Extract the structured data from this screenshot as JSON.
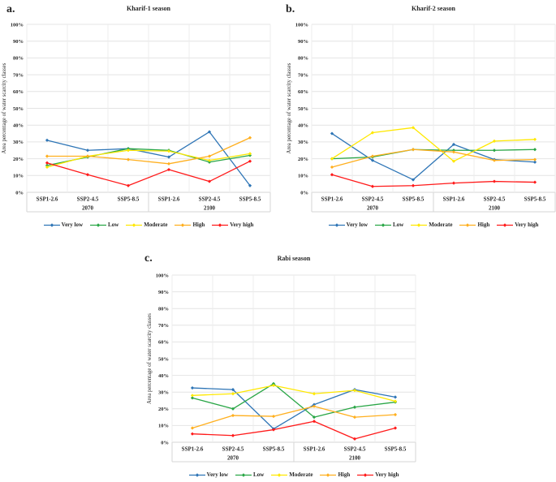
{
  "figure": {
    "panels": [
      {
        "letter": "a.",
        "title": "Kharif-1 season"
      },
      {
        "letter": "b.",
        "title": "Kharif-2 season"
      },
      {
        "letter": "c.",
        "title": "Rabi season"
      }
    ]
  },
  "chart_data": [
    {
      "type": "line",
      "panel_letter": "a.",
      "title": "Kharif-1 season",
      "xlabel": "",
      "ylabel": "Area percentage of water scarcity classes",
      "ylim": [
        0,
        100
      ],
      "yticks": [
        "0%",
        "10%",
        "20%",
        "30%",
        "40%",
        "50%",
        "60%",
        "70%",
        "80%",
        "90%",
        "100%"
      ],
      "grid": true,
      "legend_position": "bottom",
      "categories": [
        "SSP1-2.6",
        "SSP2-4.5",
        "SSP5-8.5",
        "SSP1-2.6",
        "SSP2-4.5",
        "SSP5-8.5"
      ],
      "year_groups": [
        {
          "label": "2070",
          "span": 3
        },
        {
          "label": "2100",
          "span": 3
        }
      ],
      "series": [
        {
          "name": "Very low",
          "color": "#2E75B6",
          "values": [
            31,
            25,
            26,
            21,
            36,
            4
          ]
        },
        {
          "name": "Low",
          "color": "#29A646",
          "values": [
            16,
            21,
            26,
            25,
            18,
            22
          ]
        },
        {
          "name": "Moderate",
          "color": "#FFE800",
          "values": [
            15,
            21.5,
            25,
            24.5,
            19,
            23
          ]
        },
        {
          "name": "High",
          "color": "#FFAF1E",
          "values": [
            21.5,
            21.5,
            19.5,
            17,
            21.5,
            32.5
          ]
        },
        {
          "name": "Very high",
          "color": "#FF1A1A",
          "values": [
            17.5,
            10.5,
            4,
            13.5,
            6.5,
            18.5
          ]
        }
      ]
    },
    {
      "type": "line",
      "panel_letter": "b.",
      "title": "Kharif-2 season",
      "xlabel": "",
      "ylabel": "Area percentage of water scarcity classes",
      "ylim": [
        0,
        100
      ],
      "yticks": [
        "0%",
        "10%",
        "20%",
        "30%",
        "40%",
        "50%",
        "60%",
        "70%",
        "80%",
        "90%",
        "100%"
      ],
      "grid": true,
      "legend_position": "bottom",
      "categories": [
        "SSP1-2.6",
        "SSP2-4.5",
        "SSP5-8.5",
        "SSP1-2.6",
        "SSP2-4.5",
        "SSP5-8.5"
      ],
      "year_groups": [
        {
          "label": "2070",
          "span": 3
        },
        {
          "label": "2100",
          "span": 3
        }
      ],
      "series": [
        {
          "name": "Very low",
          "color": "#2E75B6",
          "values": [
            35,
            19,
            7.5,
            28.5,
            19.5,
            18
          ]
        },
        {
          "name": "Low",
          "color": "#29A646",
          "values": [
            20,
            21,
            25.5,
            25,
            25,
            25.5
          ]
        },
        {
          "name": "Moderate",
          "color": "#FFE800",
          "values": [
            20,
            35.5,
            38.5,
            18.5,
            30.5,
            31.5
          ]
        },
        {
          "name": "High",
          "color": "#FFAF1E",
          "values": [
            15,
            21.5,
            25.5,
            24,
            19,
            19.5
          ]
        },
        {
          "name": "Very high",
          "color": "#FF1A1A",
          "values": [
            10.5,
            3.5,
            4,
            5.5,
            6.5,
            6
          ]
        }
      ]
    },
    {
      "type": "line",
      "panel_letter": "c.",
      "title": "Rabi season",
      "xlabel": "",
      "ylabel": "Area percentage of water scarcity classes",
      "ylim": [
        0,
        100
      ],
      "yticks": [
        "0%",
        "10%",
        "20%",
        "30%",
        "40%",
        "50%",
        "60%",
        "70%",
        "80%",
        "90%",
        "100%"
      ],
      "grid": true,
      "legend_position": "bottom",
      "categories": [
        "SSP1-2.6",
        "SSP2-4.5",
        "SSP5-8.5",
        "SSP1-2.6",
        "SSP2-4.5",
        "SSP5-8.5"
      ],
      "year_groups": [
        {
          "label": "2070",
          "span": 3
        },
        {
          "label": "2100",
          "span": 3
        }
      ],
      "series": [
        {
          "name": "Very low",
          "color": "#2E75B6",
          "values": [
            32.5,
            31.5,
            8,
            22.5,
            31.5,
            27
          ]
        },
        {
          "name": "Low",
          "color": "#29A646",
          "values": [
            26.5,
            20,
            35,
            15,
            21,
            24
          ]
        },
        {
          "name": "Moderate",
          "color": "#FFE800",
          "values": [
            28,
            29,
            34,
            29,
            31,
            24.5
          ]
        },
        {
          "name": "High",
          "color": "#FFAF1E",
          "values": [
            8.5,
            16,
            15.5,
            21.5,
            15,
            16.5
          ]
        },
        {
          "name": "Very high",
          "color": "#FF1A1A",
          "values": [
            5,
            4,
            7.5,
            12.5,
            2,
            8.5
          ]
        }
      ]
    }
  ]
}
